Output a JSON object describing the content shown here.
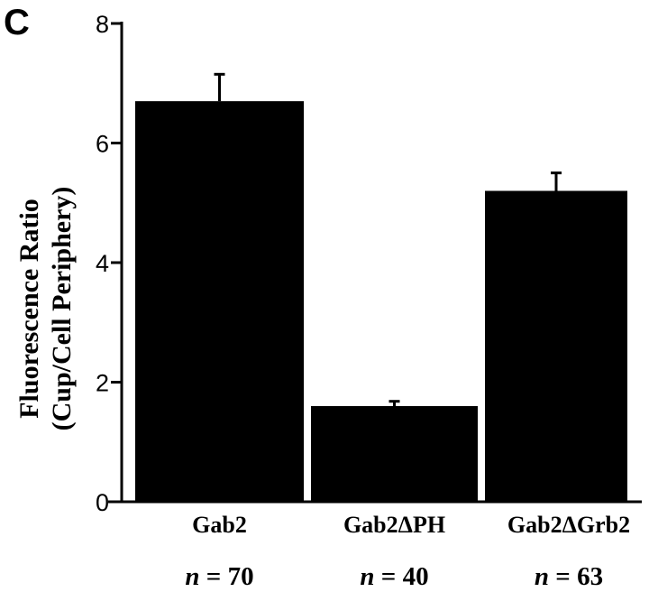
{
  "panel_label": "C",
  "chart_data": {
    "type": "bar",
    "title": "",
    "xlabel": "",
    "ylabel": [
      "Fluorescence Ratio",
      "(Cup/Cell Periphery)"
    ],
    "ylim": [
      0,
      8
    ],
    "yticks": [
      0,
      2,
      4,
      6,
      8
    ],
    "ytick_labels": [
      "0",
      "2",
      "4",
      "6",
      "8"
    ],
    "grid": false,
    "categories": [
      "Gab2",
      "Gab2ΔPH",
      "Gab2ΔGrb2"
    ],
    "values": [
      6.7,
      1.6,
      5.2
    ],
    "errors": [
      0.45,
      0.08,
      0.3
    ],
    "n_var": "n",
    "n_values": [
      "= 70",
      "= 40",
      "= 63"
    ],
    "bar_color": "#000000"
  }
}
